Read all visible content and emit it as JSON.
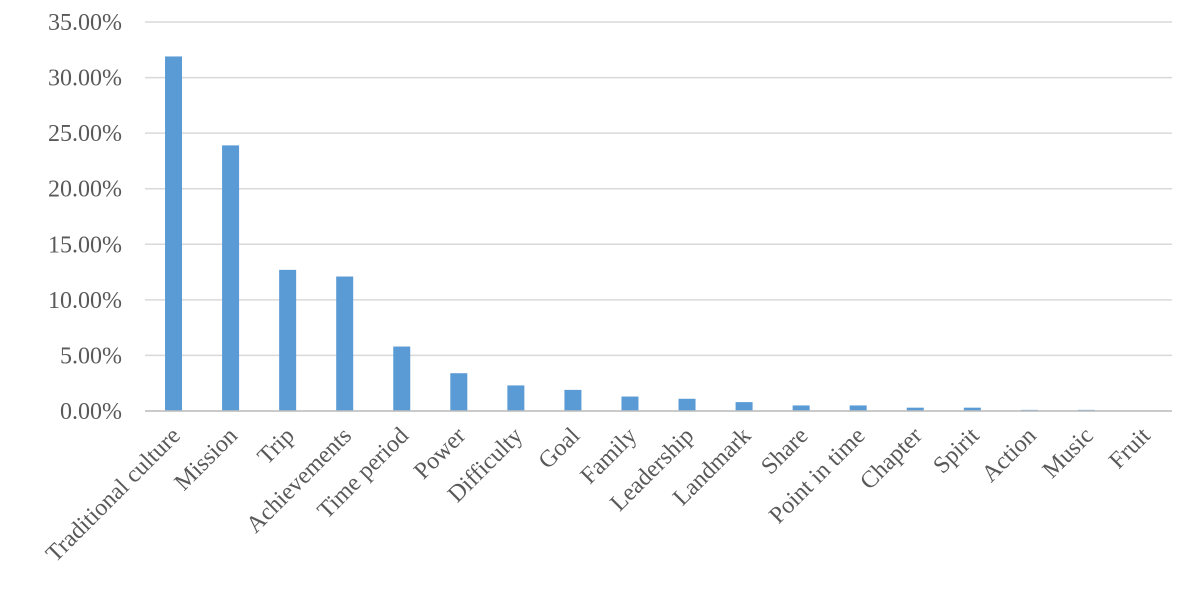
{
  "chart_data": {
    "type": "bar",
    "categories": [
      "Traditional culture",
      "Mission",
      "Trip",
      "Achievements",
      "Time period",
      "Power",
      "Difficulty",
      "Goal",
      "Family",
      "Leadership",
      "Landmark",
      "Share",
      "Point in time",
      "Chapter",
      "Spirit",
      "Action",
      "Music",
      "Fruit"
    ],
    "values": [
      31.9,
      23.9,
      12.7,
      12.1,
      5.8,
      3.4,
      2.3,
      1.9,
      1.3,
      1.1,
      0.8,
      0.5,
      0.5,
      0.3,
      0.3,
      0.1,
      0.1,
      0
    ],
    "color": "#5b9bd5",
    "ylim": [
      0,
      35
    ],
    "yticks": [
      {
        "value": 0,
        "label": "0.00%"
      },
      {
        "value": 5,
        "label": "5.00%"
      },
      {
        "value": 10,
        "label": "10.00%"
      },
      {
        "value": 15,
        "label": "15.00%"
      },
      {
        "value": 20,
        "label": "20.00%"
      },
      {
        "value": 25,
        "label": "25.00%"
      },
      {
        "value": 30,
        "label": "30.00%"
      },
      {
        "value": 35,
        "label": "35.00%"
      }
    ],
    "grid": true
  }
}
